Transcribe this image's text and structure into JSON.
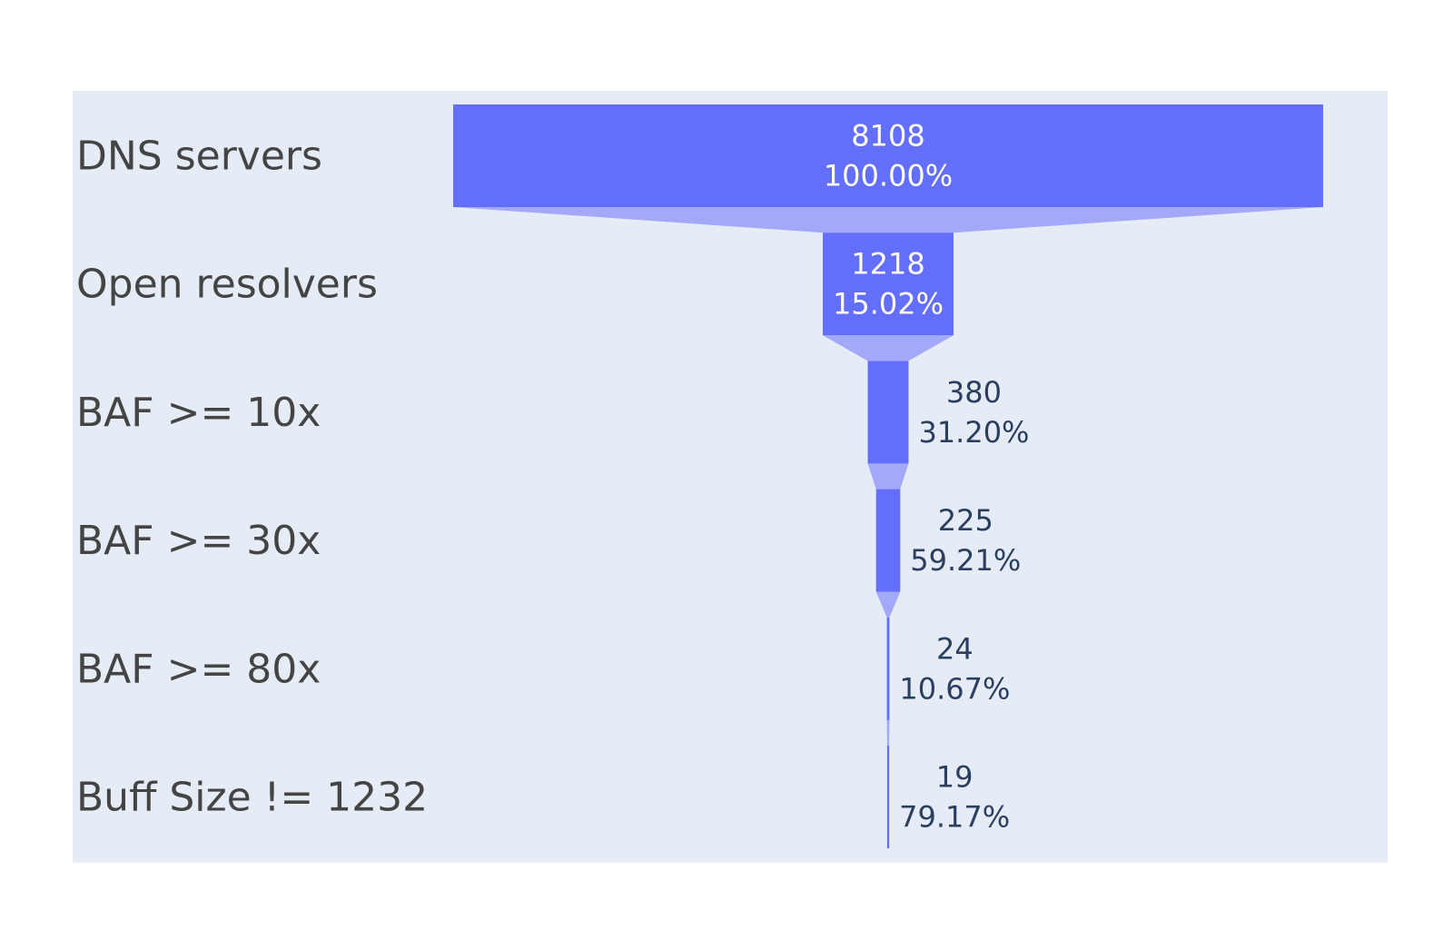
{
  "chart_data": {
    "type": "funnel",
    "stages": [
      {
        "label": "DNS servers",
        "value": 8108,
        "percent_text": "100.00%"
      },
      {
        "label": "Open resolvers",
        "value": 1218,
        "percent_text": "15.02%"
      },
      {
        "label": "BAF >= 10x",
        "value": 380,
        "percent_text": "31.20%"
      },
      {
        "label": "BAF >= 30x",
        "value": 225,
        "percent_text": "59.21%"
      },
      {
        "label": "BAF >= 80x",
        "value": 24,
        "percent_text": "10.67%"
      },
      {
        "label": "Buff Size != 1232",
        "value": 19,
        "percent_text": "79.17%"
      }
    ],
    "percent_basis": "percent of previous",
    "colors": {
      "bar": "#636efa",
      "connector": "#a3a9f8",
      "plot_background": "#e5ecf6",
      "text_inside": "#ffffff",
      "text_outside": "#2a3f5f",
      "label_text": "#444444"
    }
  }
}
